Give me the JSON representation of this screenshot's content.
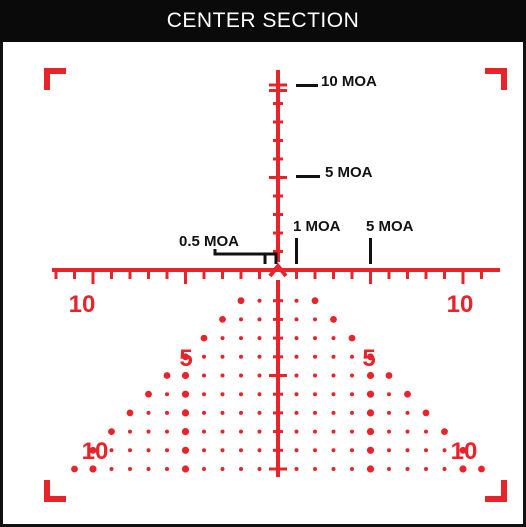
{
  "header": {
    "title": "CENTER SECTION"
  },
  "colors": {
    "reticle": "#e8232a",
    "annotation": "#111111",
    "header_bg": "#0a0a0a"
  },
  "labels": {
    "ten_moa": "10 MOA",
    "five_moa": "5 MOA",
    "one_moa": "1 MOA",
    "five_moa_horizontal": "5 MOA",
    "half_moa": "0.5 MOA"
  },
  "numbers": {
    "left_ten": "10",
    "right_ten": "10",
    "left_five": "5",
    "right_five": "5",
    "lower_left_ten": "10",
    "lower_right_ten": "10"
  },
  "icons": [
    "corner-bracket-icon",
    "chevron-up-icon"
  ]
}
